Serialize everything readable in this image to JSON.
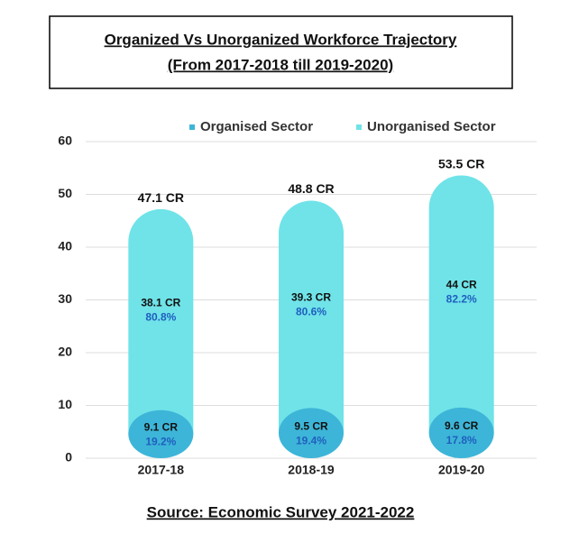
{
  "chart_data": {
    "type": "bar",
    "stacked": true,
    "title": "Organized Vs Unorganized Workforce Trajectory",
    "subtitle": "(From 2017-2018 till 2019-2020)",
    "source": "Source: Economic Survey 2021-2022",
    "categories": [
      "2017-18",
      "2018-19",
      "2019-20"
    ],
    "series": [
      {
        "name": "Organised Sector",
        "color": "#3db5d8",
        "values": [
          9.1,
          9.5,
          9.6
        ],
        "value_labels": [
          "9.1 CR",
          "9.5 CR",
          "9.6 CR"
        ],
        "percent_labels": [
          "19.2%",
          "19.4%",
          "17.8%"
        ]
      },
      {
        "name": "Unorganised Sector",
        "color": "#6fe3e8",
        "values": [
          38.1,
          39.3,
          44
        ],
        "value_labels": [
          "38.1 CR",
          "39.3 CR",
          "44 CR"
        ],
        "percent_labels": [
          "80.8%",
          "80.6%",
          "82.2%"
        ]
      }
    ],
    "totals": [
      47.1,
      48.8,
      53.5
    ],
    "total_labels": [
      "47.1 CR",
      "48.8 CR",
      "53.5 CR"
    ],
    "ylim": [
      0,
      60
    ],
    "yticks": [
      0,
      10,
      20,
      30,
      40,
      50,
      60
    ],
    "grid": true,
    "legend": "top"
  }
}
